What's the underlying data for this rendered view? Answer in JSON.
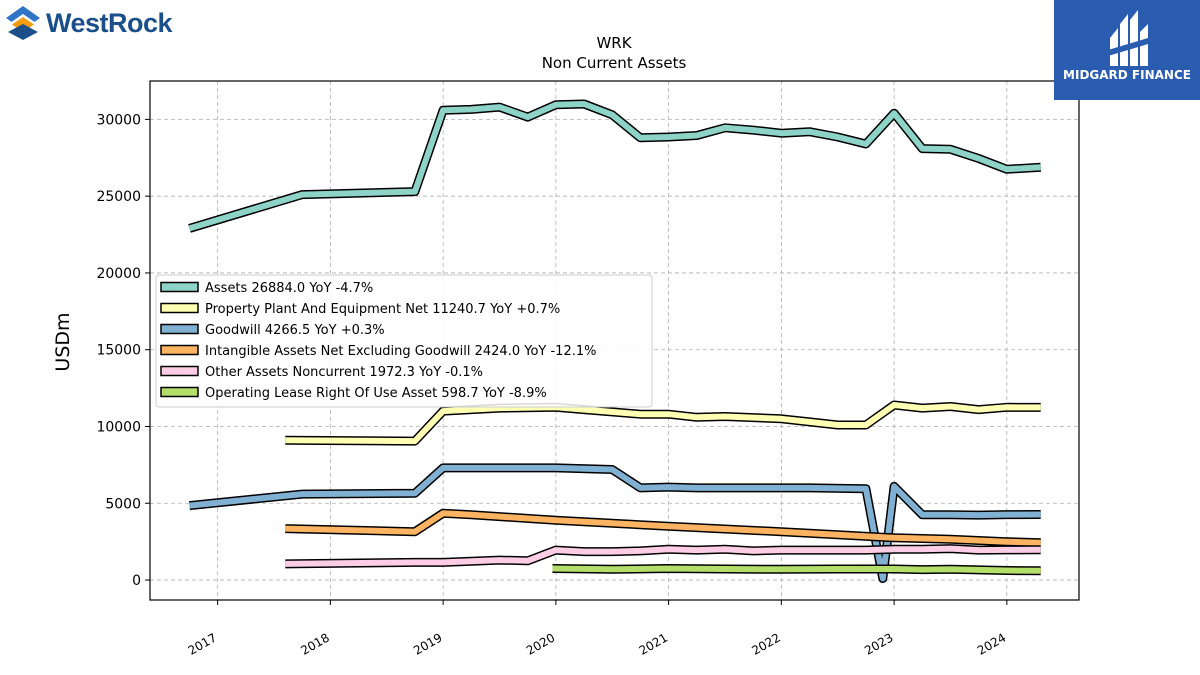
{
  "brand_left": {
    "name": "WestRock"
  },
  "brand_right": {
    "name": "MIDGARD FINANCE"
  },
  "chart_data": {
    "type": "line",
    "title": "WRK",
    "subtitle": "Non Current  Assets",
    "ylabel": "USDm",
    "xlabel": "",
    "ylim": [
      -1300,
      32500
    ],
    "xlim": [
      2016.4,
      2024.64
    ],
    "x_ticks": [
      2017,
      2018,
      2019,
      2020,
      2021,
      2022,
      2023,
      2024
    ],
    "y_ticks": [
      0,
      5000,
      10000,
      15000,
      20000,
      25000,
      30000
    ],
    "grid": true,
    "legend_position": "center-left",
    "series": [
      {
        "name": "Assets  26884.0 YoY -4.7%",
        "color": "#8dd3c7",
        "points": [
          [
            2016.75,
            22900
          ],
          [
            2017.75,
            25100
          ],
          [
            2018.75,
            25300
          ],
          [
            2019.0,
            30600
          ],
          [
            2019.25,
            30650
          ],
          [
            2019.5,
            30800
          ],
          [
            2019.75,
            30150
          ],
          [
            2020.0,
            30950
          ],
          [
            2020.25,
            31000
          ],
          [
            2020.5,
            30300
          ],
          [
            2020.75,
            28800
          ],
          [
            2021.0,
            28850
          ],
          [
            2021.25,
            28950
          ],
          [
            2021.5,
            29450
          ],
          [
            2021.75,
            29300
          ],
          [
            2022.0,
            29100
          ],
          [
            2022.25,
            29200
          ],
          [
            2022.5,
            28850
          ],
          [
            2022.75,
            28400
          ],
          [
            2023.0,
            30400
          ],
          [
            2023.25,
            28100
          ],
          [
            2023.5,
            28050
          ],
          [
            2023.75,
            27450
          ],
          [
            2024.0,
            26750
          ],
          [
            2024.3,
            26884
          ]
        ]
      },
      {
        "name": "Property Plant And Equipment Net  11240.7 YoY +0.7%",
        "color": "#ffffb3",
        "points": [
          [
            2017.6,
            9100
          ],
          [
            2018.75,
            9050
          ],
          [
            2019.0,
            11000
          ],
          [
            2019.5,
            11200
          ],
          [
            2020.0,
            11250
          ],
          [
            2020.25,
            11100
          ],
          [
            2020.75,
            10800
          ],
          [
            2021.0,
            10800
          ],
          [
            2021.25,
            10600
          ],
          [
            2021.5,
            10650
          ],
          [
            2022.0,
            10500
          ],
          [
            2022.25,
            10300
          ],
          [
            2022.5,
            10100
          ],
          [
            2022.75,
            10100
          ],
          [
            2023.0,
            11400
          ],
          [
            2023.25,
            11200
          ],
          [
            2023.5,
            11300
          ],
          [
            2023.75,
            11100
          ],
          [
            2024.0,
            11250
          ],
          [
            2024.3,
            11240.7
          ]
        ]
      },
      {
        "name": "Goodwill  4266.5 YoY +0.3%",
        "color": "#80b1d3",
        "points": [
          [
            2016.75,
            4850
          ],
          [
            2017.75,
            5600
          ],
          [
            2018.75,
            5650
          ],
          [
            2019.0,
            7300
          ],
          [
            2019.5,
            7300
          ],
          [
            2020.0,
            7300
          ],
          [
            2020.5,
            7200
          ],
          [
            2020.75,
            6000
          ],
          [
            2021.0,
            6050
          ],
          [
            2021.25,
            6000
          ],
          [
            2022.0,
            6000
          ],
          [
            2022.25,
            6000
          ],
          [
            2022.75,
            5950
          ],
          [
            2022.9,
            100
          ],
          [
            2023.0,
            6100
          ],
          [
            2023.25,
            4250
          ],
          [
            2023.5,
            4250
          ],
          [
            2023.75,
            4230
          ],
          [
            2024.0,
            4260
          ],
          [
            2024.3,
            4266.5
          ]
        ]
      },
      {
        "name": "Intangible Assets Net Excluding Goodwill  2424.0 YoY -12.1%",
        "color": "#fdb462",
        "points": [
          [
            2017.6,
            3350
          ],
          [
            2018.75,
            3150
          ],
          [
            2019.0,
            4350
          ],
          [
            2019.25,
            4250
          ],
          [
            2020.0,
            3900
          ],
          [
            2021.0,
            3500
          ],
          [
            2022.0,
            3150
          ],
          [
            2022.5,
            2950
          ],
          [
            2023.0,
            2750
          ],
          [
            2023.5,
            2650
          ],
          [
            2024.0,
            2500
          ],
          [
            2024.3,
            2424
          ]
        ]
      },
      {
        "name": "Other Assets Noncurrent  1972.3 YoY -0.1%",
        "color": "#fccde5",
        "points": [
          [
            2017.6,
            1050
          ],
          [
            2018.75,
            1150
          ],
          [
            2019.0,
            1150
          ],
          [
            2019.5,
            1300
          ],
          [
            2019.75,
            1250
          ],
          [
            2020.0,
            1950
          ],
          [
            2020.25,
            1850
          ],
          [
            2020.5,
            1850
          ],
          [
            2020.75,
            1900
          ],
          [
            2021.0,
            2000
          ],
          [
            2021.25,
            1950
          ],
          [
            2021.5,
            2000
          ],
          [
            2021.75,
            1900
          ],
          [
            2022.0,
            1950
          ],
          [
            2022.5,
            1950
          ],
          [
            2022.75,
            1950
          ],
          [
            2023.0,
            2000
          ],
          [
            2023.25,
            2000
          ],
          [
            2023.5,
            2050
          ],
          [
            2023.75,
            1950
          ],
          [
            2024.0,
            1960
          ],
          [
            2024.3,
            1972.3
          ]
        ]
      },
      {
        "name": "Operating Lease Right Of Use Asset  598.7 YoY -8.9%",
        "color": "#b3de69",
        "points": [
          [
            2019.97,
            750
          ],
          [
            2020.5,
            700
          ],
          [
            2021.0,
            750
          ],
          [
            2021.5,
            720
          ],
          [
            2022.0,
            700
          ],
          [
            2022.5,
            720
          ],
          [
            2023.0,
            720
          ],
          [
            2023.25,
            680
          ],
          [
            2023.5,
            700
          ],
          [
            2023.75,
            660
          ],
          [
            2024.0,
            620
          ],
          [
            2024.3,
            598.7
          ]
        ]
      }
    ]
  }
}
